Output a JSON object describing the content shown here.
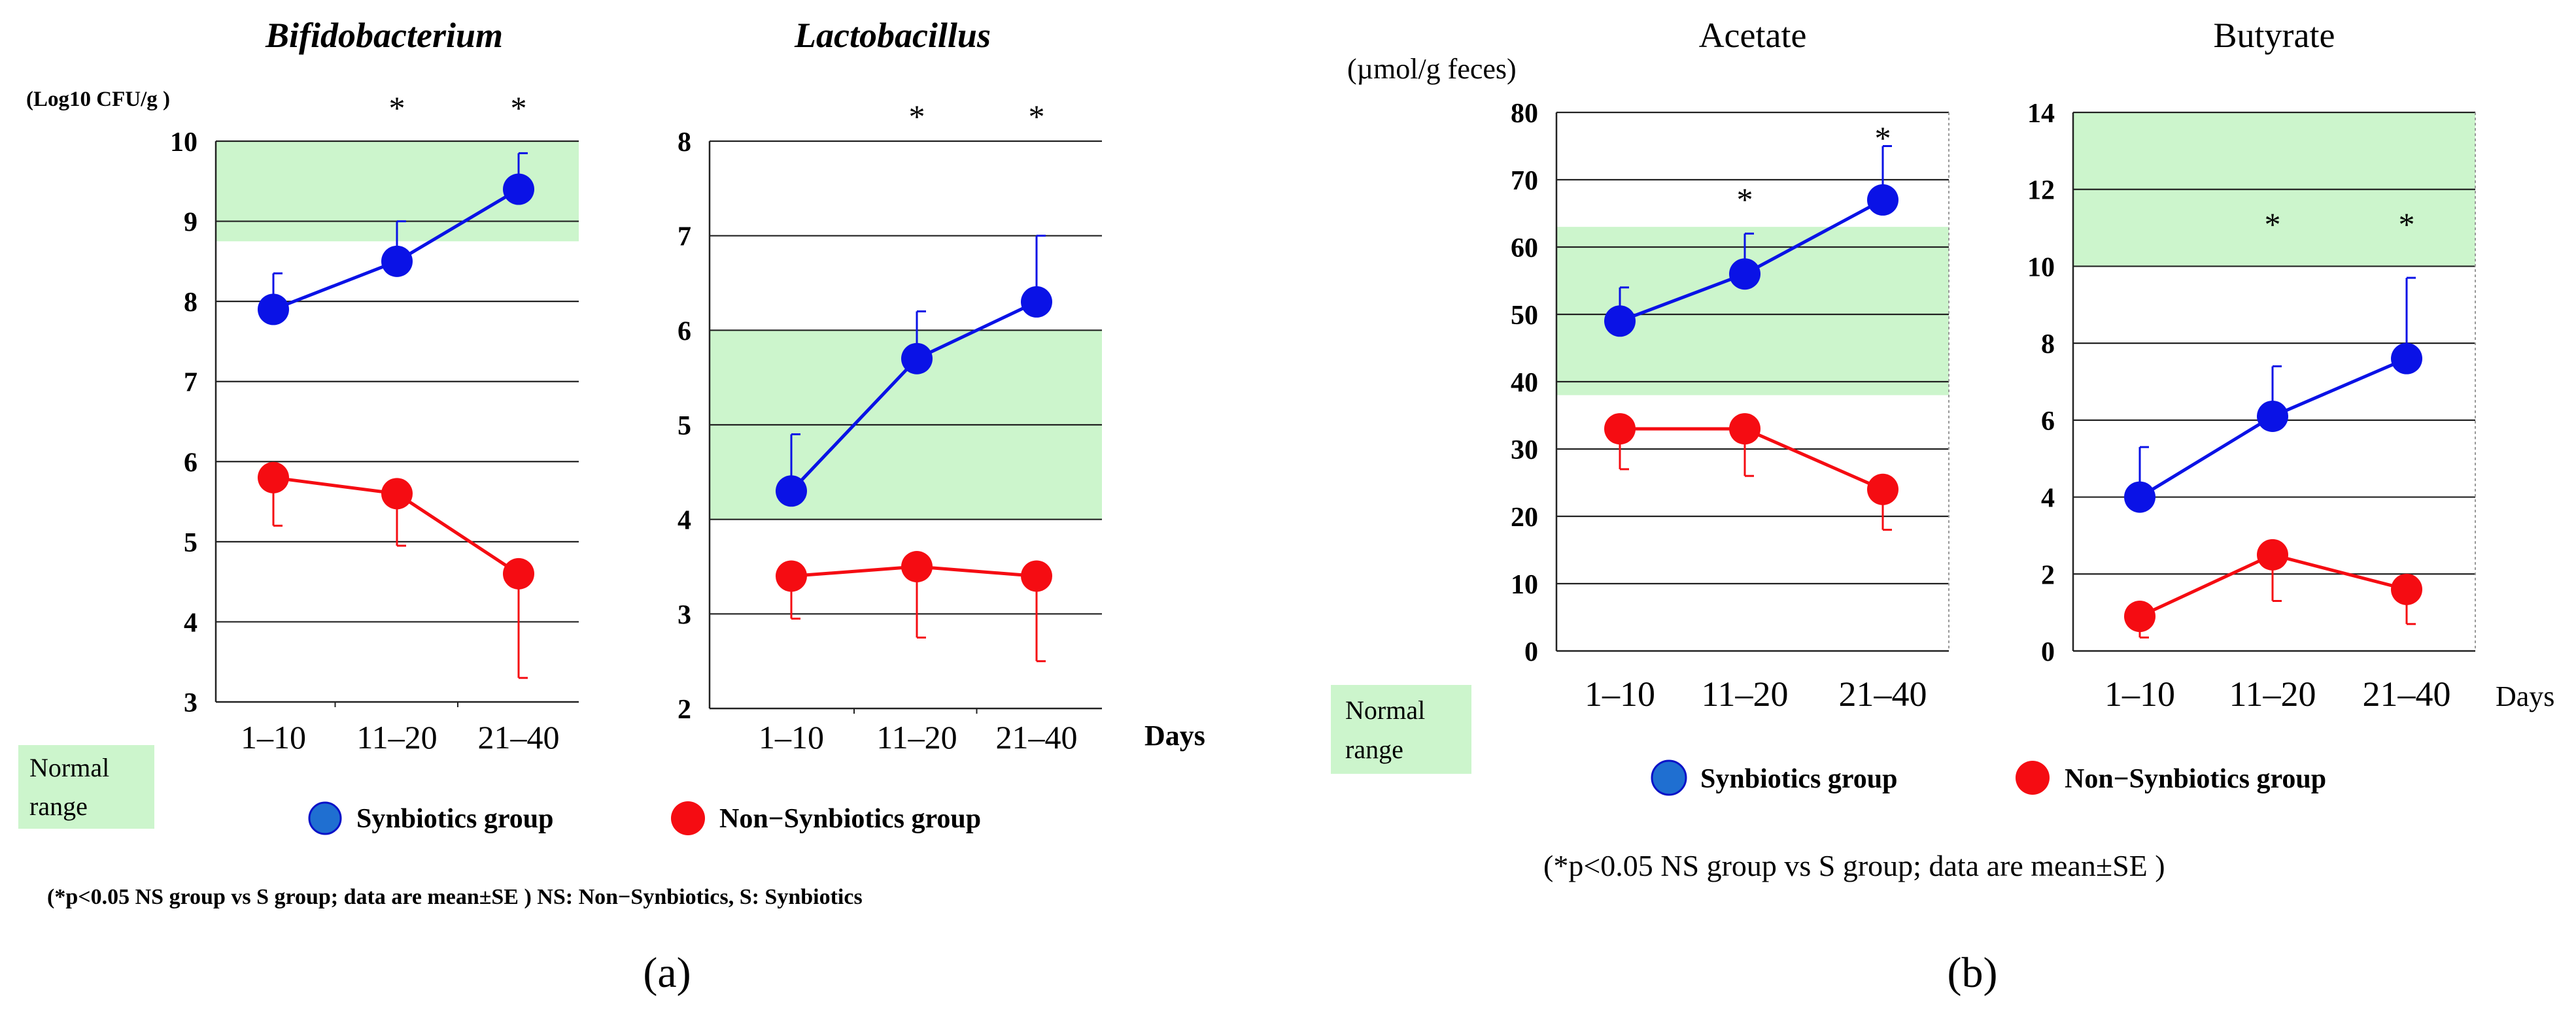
{
  "figure": {
    "panel_a_label": "(a)",
    "panel_b_label": "(b)",
    "days_label": "Days",
    "normal_range_label": [
      "Normal",
      "range"
    ]
  },
  "colors": {
    "synbiotics": "#0a12e6",
    "non_synbiotics": "#f50c12",
    "normal_range_fill": "#ccf5cc",
    "grid": "#111111",
    "legend_synbiotics_fill": "#1f6fd1"
  },
  "panel_a": {
    "ylabel": "(Log10 CFU/g )",
    "legend": {
      "synbiotics": "Synbiotics group",
      "non_synbiotics": "Non−Synbiotics group"
    },
    "footnote": "(*p<0.05 NS group vs S group; data are mean±SE ) NS: Non−Synbiotics, S: Synbiotics"
  },
  "panel_b": {
    "ylabel": "(µmol/g feces)",
    "legend": {
      "synbiotics": "Synbiotics group",
      "non_synbiotics": "Non−Synbiotics group"
    },
    "footnote": "(*p<0.05 NS group vs S group; data are mean±SE )"
  },
  "chart_data": [
    {
      "type": "line",
      "title": "Bifidobacterium",
      "title_italic": true,
      "categories": [
        "1–10",
        "11–20",
        "21–40"
      ],
      "ylim": [
        3,
        10
      ],
      "yticks": [
        3,
        4,
        5,
        6,
        7,
        8,
        9,
        10
      ],
      "normal_range": [
        8.75,
        10
      ],
      "significant": [
        false,
        true,
        true
      ],
      "series": [
        {
          "name": "Synbiotics group",
          "values": [
            7.9,
            8.5,
            9.4
          ],
          "error": [
            0.45,
            0.5,
            0.45
          ],
          "error_dir": "up"
        },
        {
          "name": "Non−Synbiotics group",
          "values": [
            5.8,
            5.6,
            4.6
          ],
          "error": [
            0.6,
            0.65,
            1.3
          ],
          "error_dir": "down"
        }
      ]
    },
    {
      "type": "line",
      "title": "Lactobacillus",
      "title_italic": true,
      "categories": [
        "1–10",
        "11–20",
        "21–40"
      ],
      "ylim": [
        2,
        8
      ],
      "yticks": [
        2,
        3,
        4,
        5,
        6,
        7,
        8
      ],
      "normal_range": [
        4,
        6
      ],
      "significant": [
        false,
        true,
        true
      ],
      "series": [
        {
          "name": "Synbiotics group",
          "values": [
            4.3,
            5.7,
            6.3
          ],
          "error": [
            0.6,
            0.5,
            0.7
          ],
          "error_dir": "up"
        },
        {
          "name": "Non−Synbiotics group",
          "values": [
            3.4,
            3.5,
            3.4
          ],
          "error": [
            0.45,
            0.75,
            0.9
          ],
          "error_dir": "down"
        }
      ]
    },
    {
      "type": "line",
      "title": "Acetate",
      "title_italic": false,
      "categories": [
        "1–10",
        "11–20",
        "21–40"
      ],
      "ylim": [
        0,
        80
      ],
      "yticks": [
        0,
        10,
        20,
        30,
        40,
        50,
        60,
        70,
        80
      ],
      "normal_range": [
        38,
        63
      ],
      "significant": [
        false,
        true,
        true
      ],
      "series": [
        {
          "name": "Synbiotics group",
          "values": [
            49,
            56,
            67
          ],
          "error": [
            5,
            6,
            8
          ],
          "error_dir": "up"
        },
        {
          "name": "Non−Synbiotics group",
          "values": [
            33,
            33,
            24
          ],
          "error": [
            6,
            7,
            6
          ],
          "error_dir": "down"
        }
      ]
    },
    {
      "type": "line",
      "title": "Butyrate",
      "title_italic": false,
      "categories": [
        "1–10",
        "11–20",
        "21–40"
      ],
      "ylim": [
        0,
        14
      ],
      "yticks": [
        0,
        2,
        4,
        6,
        8,
        10,
        12,
        14
      ],
      "normal_range": [
        10,
        14
      ],
      "significant": [
        false,
        true,
        true
      ],
      "series": [
        {
          "name": "Synbiotics group",
          "values": [
            4.0,
            6.1,
            7.6
          ],
          "error": [
            1.3,
            1.3,
            2.1
          ],
          "error_dir": "up"
        },
        {
          "name": "Non−Synbiotics group",
          "values": [
            0.9,
            2.5,
            1.6
          ],
          "error": [
            0.55,
            1.2,
            0.9
          ],
          "error_dir": "down"
        }
      ]
    }
  ]
}
